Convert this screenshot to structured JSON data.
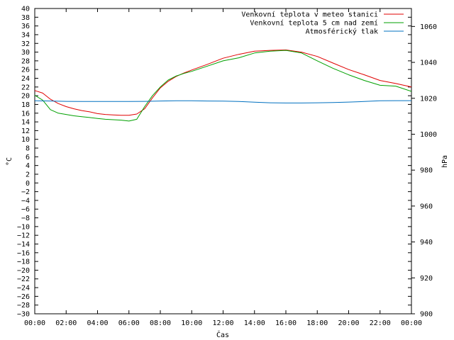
{
  "chart_data": {
    "type": "line",
    "xlabel": "Čas",
    "ylabel": "°C",
    "y2label": "hPa",
    "x_ticks": [
      "00:00",
      "02:00",
      "04:00",
      "06:00",
      "08:00",
      "10:00",
      "12:00",
      "14:00",
      "16:00",
      "18:00",
      "20:00",
      "22:00",
      "00:00"
    ],
    "x_range_hours": [
      0,
      24
    ],
    "ylim": [
      -30,
      40
    ],
    "y_tick_step": 2,
    "y2lim": [
      900,
      1070
    ],
    "y2_ticks": [
      900,
      920,
      940,
      960,
      980,
      1000,
      1020,
      1040,
      1060
    ],
    "grid": false,
    "legend_position": "top-right",
    "series": [
      {
        "name": "Venkovní teplota v meteo stanici",
        "color": "#e00000",
        "axis": "left",
        "x": [
          0,
          0.5,
          1,
          1.5,
          2,
          2.5,
          3,
          3.5,
          4,
          4.5,
          5,
          5.5,
          6,
          6.5,
          7,
          7.5,
          8,
          8.5,
          9,
          9.5,
          10,
          11,
          12,
          13,
          14,
          15,
          16,
          17,
          18,
          19,
          20,
          21,
          22,
          23,
          24
        ],
        "values": [
          21.2,
          20.6,
          19.2,
          18.2,
          17.5,
          17.0,
          16.6,
          16.3,
          15.9,
          15.7,
          15.6,
          15.5,
          15.5,
          15.8,
          17.0,
          19.5,
          21.8,
          23.3,
          24.4,
          25.2,
          25.9,
          27.2,
          28.6,
          29.5,
          30.2,
          30.4,
          30.5,
          30.0,
          29.0,
          27.5,
          26.0,
          24.8,
          23.5,
          22.8,
          22.0
        ]
      },
      {
        "name": "Venkovní teplota 5 cm nad zemí",
        "color": "#00a000",
        "axis": "left",
        "x": [
          0,
          0.5,
          1,
          1.5,
          2,
          2.5,
          3,
          3.5,
          4,
          4.5,
          5,
          5.5,
          6,
          6.5,
          7,
          7.5,
          8,
          8.5,
          9,
          9.5,
          10,
          11,
          12,
          13,
          14,
          15,
          16,
          17,
          18,
          19,
          20,
          21,
          22,
          23,
          24
        ],
        "values": [
          20.1,
          19.0,
          16.8,
          16.0,
          15.7,
          15.4,
          15.2,
          15.0,
          14.8,
          14.6,
          14.5,
          14.4,
          14.2,
          14.6,
          17.5,
          20.0,
          22.0,
          23.6,
          24.5,
          25.1,
          25.6,
          26.8,
          28.0,
          28.7,
          29.8,
          30.2,
          30.4,
          29.8,
          28.0,
          26.3,
          24.8,
          23.5,
          22.4,
          22.2,
          21.0
        ]
      },
      {
        "name": "Atmosférický tlak",
        "color": "#0070c0",
        "axis": "right",
        "x": [
          0,
          1,
          2,
          3,
          4,
          5,
          6,
          7,
          8,
          9,
          10,
          11,
          12,
          13,
          14,
          15,
          16,
          17,
          18,
          19,
          20,
          21,
          22,
          23,
          24
        ],
        "values": [
          1018.6,
          1018.5,
          1018.3,
          1018.2,
          1018.2,
          1018.2,
          1018.2,
          1018.3,
          1018.5,
          1018.6,
          1018.6,
          1018.5,
          1018.4,
          1018.2,
          1017.8,
          1017.5,
          1017.4,
          1017.4,
          1017.5,
          1017.6,
          1017.9,
          1018.2,
          1018.6,
          1018.7,
          1018.7
        ]
      }
    ]
  }
}
